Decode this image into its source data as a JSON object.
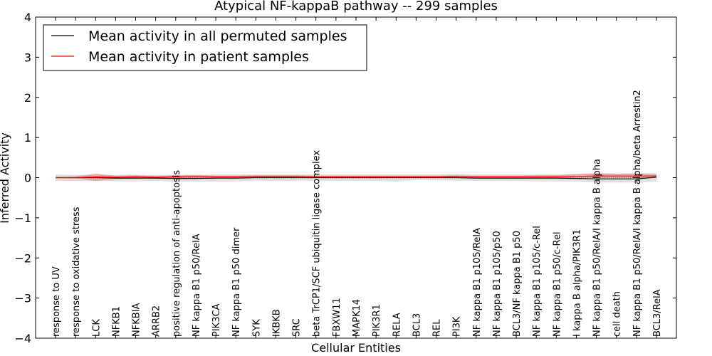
{
  "chart_data": {
    "type": "line",
    "title": "Atypical NF-kappaB pathway -- 299 samples",
    "xlabel": "Cellular Entities",
    "ylabel": "Inferred Activity",
    "ylim": [
      -4,
      4
    ],
    "yticks": [
      -4,
      -3,
      -2,
      -1,
      0,
      1,
      2,
      3,
      4
    ],
    "ytick_labels": [
      "−4",
      "−3",
      "−2",
      "−1",
      "0",
      "1",
      "2",
      "3",
      "4"
    ],
    "grid": false,
    "legend_position": "top-left",
    "categories": [
      "response to UV",
      "response to oxidative stress",
      "LCK",
      "NFKB1",
      "NFKBIA",
      "ARRB2",
      "positive regulation of anti-apoptosis",
      "NF kappa B1 p50/RelA",
      "PIK3CA",
      "NF kappa B1 p50 dimer",
      "SYK",
      "IKBKB",
      "SRC",
      "beta TrCP1/SCF ubiquitin ligase complex",
      "FBXW11",
      "MAPK14",
      "PIK3R1",
      "RELA",
      "BCL3",
      "REL",
      "PI3K",
      "NF kappa B1 p105/RelA",
      "NF kappa B1 p105/p50",
      "BCL3/NF kappa B1 p50",
      "NF kappa B1 p105/c-Rel",
      "NF kappa B1 p50/c-Rel",
      "I kappa B alpha/PIK3R1",
      "NF kappa B1 p50/RelA/I kappa B alpha",
      "cell death",
      "NF kappa B1 p50/RelA/I kappa B alpha/beta Arrestin2",
      "BCL3/RelA"
    ],
    "series": [
      {
        "name": "Mean activity in all permuted samples",
        "color": "#000000",
        "values": [
          0,
          0,
          0,
          -0.01,
          -0.01,
          -0.01,
          -0.02,
          -0.02,
          -0.01,
          -0.01,
          0,
          0,
          0,
          0,
          0,
          0,
          0,
          0,
          0,
          0,
          0,
          -0.01,
          -0.01,
          -0.01,
          -0.01,
          -0.01,
          -0.02,
          -0.03,
          -0.03,
          -0.03,
          0.01
        ],
        "band_low": [
          -0.08,
          -0.08,
          -0.08,
          -0.09,
          -0.09,
          -0.08,
          -0.1,
          -0.1,
          -0.1,
          -0.09,
          -0.08,
          -0.08,
          -0.08,
          -0.08,
          -0.08,
          -0.08,
          -0.08,
          -0.1,
          -0.06,
          -0.07,
          -0.08,
          -0.08,
          -0.08,
          -0.08,
          -0.09,
          -0.09,
          -0.1,
          -0.12,
          -0.12,
          -0.12,
          -0.1
        ],
        "band_high": [
          0.08,
          0.07,
          0.07,
          0.07,
          0.07,
          0.07,
          0.07,
          0.07,
          0.08,
          0.08,
          0.08,
          0.08,
          0.08,
          0.08,
          0.08,
          0.08,
          0.08,
          0.08,
          0.08,
          0.08,
          0.09,
          0.08,
          0.08,
          0.08,
          0.08,
          0.08,
          0.09,
          0.1,
          0.1,
          0.11,
          0.12
        ]
      },
      {
        "name": "Mean activity in patient samples",
        "color": "#ff0000",
        "values": [
          0,
          0,
          0.02,
          0.01,
          0.02,
          0.01,
          0.02,
          0.03,
          0.02,
          0.02,
          0.03,
          0.03,
          0.03,
          0.02,
          0.02,
          0.02,
          0.02,
          0.02,
          0.02,
          0.02,
          0.03,
          0.02,
          0.02,
          0.02,
          0.02,
          0.02,
          0.03,
          0.04,
          0.04,
          0.04,
          0.04
        ],
        "band_low": [
          -0.01,
          -0.02,
          -0.08,
          -0.03,
          -0.02,
          -0.01,
          -0.02,
          -0.01,
          -0.01,
          -0.01,
          0,
          0,
          0,
          0,
          0,
          0,
          0,
          0,
          0,
          0,
          0,
          0,
          0,
          0,
          0,
          0,
          0,
          0,
          0,
          0,
          0
        ],
        "band_high": [
          0.01,
          0.03,
          0.1,
          0.05,
          0.06,
          0.04,
          0.06,
          0.07,
          0.05,
          0.05,
          0.06,
          0.06,
          0.06,
          0.05,
          0.05,
          0.05,
          0.05,
          0.05,
          0.05,
          0.05,
          0.06,
          0.05,
          0.05,
          0.05,
          0.06,
          0.06,
          0.09,
          0.11,
          0.1,
          0.1,
          0.08
        ]
      }
    ],
    "band_colors": [
      "#d3d3d3",
      "#f08080"
    ]
  }
}
